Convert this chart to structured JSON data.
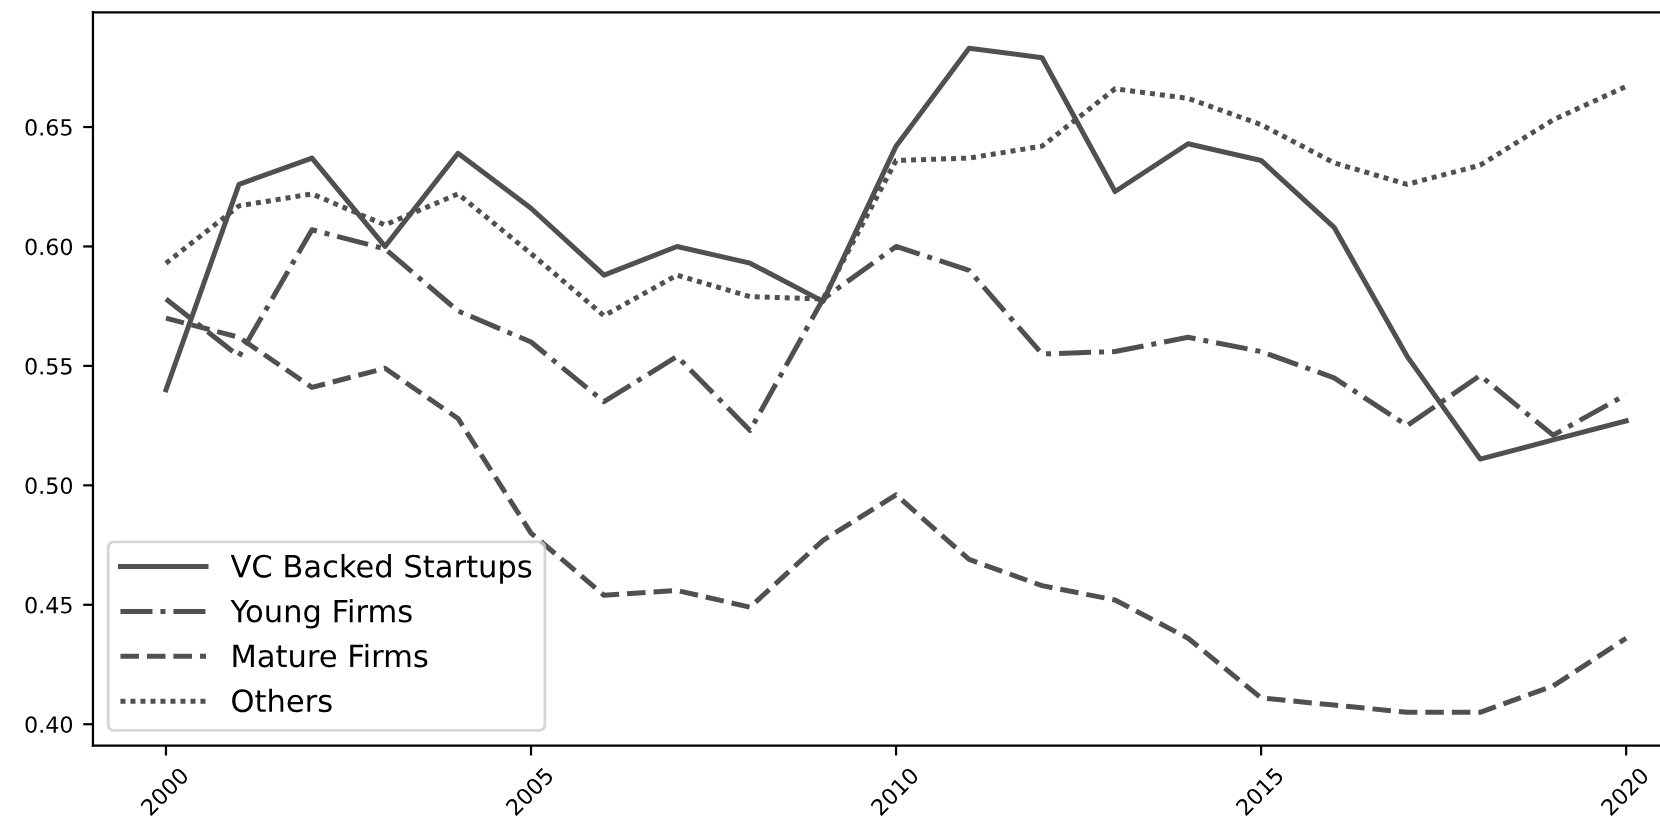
{
  "chart_data": {
    "type": "line",
    "x": [
      2000,
      2001,
      2002,
      2003,
      2004,
      2005,
      2006,
      2007,
      2008,
      2009,
      2010,
      2011,
      2012,
      2013,
      2014,
      2015,
      2016,
      2017,
      2018,
      2019,
      2020
    ],
    "series": [
      {
        "name": "VC Backed Startups",
        "color": "#505050",
        "line_style": "solid",
        "values": [
          0.54,
          0.626,
          0.637,
          0.6,
          0.639,
          0.616,
          0.588,
          0.6,
          0.593,
          0.577,
          0.642,
          0.683,
          0.679,
          0.623,
          0.643,
          0.636,
          0.608,
          0.554,
          0.511,
          0.519,
          0.527
        ]
      },
      {
        "name": "Young Firms",
        "color": "#505050",
        "line_style": "dashdot",
        "values": [
          0.578,
          0.554,
          0.607,
          0.599,
          0.573,
          0.56,
          0.535,
          0.554,
          0.523,
          0.578,
          0.6,
          0.59,
          0.555,
          0.556,
          0.562,
          0.556,
          0.545,
          0.525,
          0.546,
          0.521,
          0.538
        ]
      },
      {
        "name": "Mature Firms",
        "color": "#505050",
        "line_style": "dashed",
        "values": [
          0.57,
          0.562,
          0.541,
          0.549,
          0.528,
          0.48,
          0.454,
          0.456,
          0.449,
          0.477,
          0.496,
          0.469,
          0.458,
          0.452,
          0.436,
          0.411,
          0.408,
          0.405,
          0.405,
          0.416,
          0.436
        ]
      },
      {
        "name": "Others",
        "color": "#505050",
        "line_style": "dotted",
        "values": [
          0.593,
          0.617,
          0.622,
          0.609,
          0.622,
          0.597,
          0.571,
          0.588,
          0.579,
          0.578,
          0.636,
          0.637,
          0.642,
          0.666,
          0.662,
          0.651,
          0.635,
          0.626,
          0.634,
          0.653,
          0.667
        ]
      }
    ],
    "xlim": [
      1999,
      2020.6
    ],
    "xticks": [
      2000,
      2005,
      2010,
      2015,
      2020
    ],
    "ylim": [
      0.391,
      0.698
    ],
    "yticks": [
      {
        "value": 0.4,
        "label": "0.40"
      },
      {
        "value": 0.45,
        "label": "0.45"
      },
      {
        "value": 0.5,
        "label": "0.50"
      },
      {
        "value": 0.55,
        "label": "0.55"
      },
      {
        "value": 0.6,
        "label": "0.60"
      },
      {
        "value": 0.65,
        "label": "0.65"
      }
    ],
    "grid": false,
    "legend": "bottom left",
    "marker": "none"
  }
}
